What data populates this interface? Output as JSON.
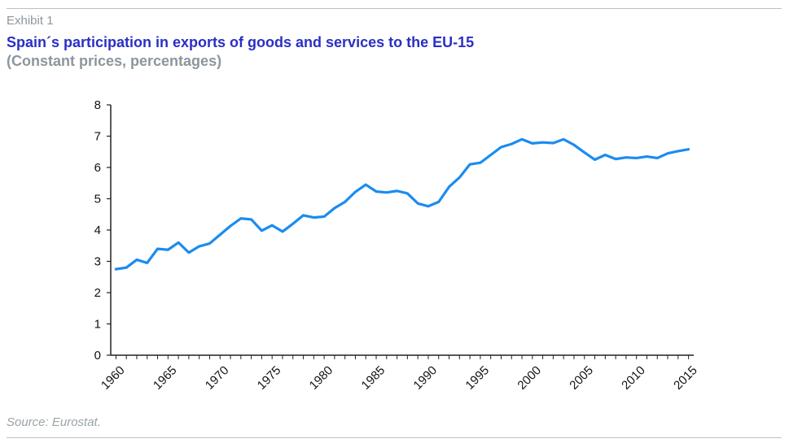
{
  "header": {
    "exhibit": "Exhibit 1",
    "title": "Spain´s participation in exports of goods and services to the EU-15",
    "subtitle": "(Constant prices, percentages)"
  },
  "footer": {
    "source": "Source: Eurostat."
  },
  "colors": {
    "line": "#1a8cf0",
    "axis": "#222222",
    "title": "#2b2fc4",
    "subtitle": "#8c969c"
  },
  "chart_data": {
    "type": "line",
    "title": "Spain´s participation in exports of goods and services to the EU-15",
    "subtitle": "(Constant prices, percentages)",
    "xlabel": "",
    "ylabel": "",
    "ylim": [
      0,
      8
    ],
    "xlim": [
      1960,
      2015
    ],
    "grid": false,
    "y_ticks": [
      "0",
      "1",
      "2",
      "3",
      "4",
      "5",
      "6",
      "7",
      "8"
    ],
    "x_ticks": [
      "1960",
      "1965",
      "1970",
      "1975",
      "1980",
      "1985",
      "1990",
      "1995",
      "2000",
      "2005",
      "2010",
      "2015"
    ],
    "x": [
      1960,
      1961,
      1962,
      1963,
      1964,
      1965,
      1966,
      1967,
      1968,
      1969,
      1970,
      1971,
      1972,
      1973,
      1974,
      1975,
      1976,
      1977,
      1978,
      1979,
      1980,
      1981,
      1982,
      1983,
      1984,
      1985,
      1986,
      1987,
      1988,
      1989,
      1990,
      1991,
      1992,
      1993,
      1994,
      1995,
      1996,
      1997,
      1998,
      1999,
      2000,
      2001,
      2002,
      2003,
      2004,
      2005,
      2006,
      2007,
      2008,
      2009,
      2010,
      2011,
      2012,
      2013,
      2014,
      2015
    ],
    "series": [
      {
        "values": [
          2.75,
          2.8,
          3.05,
          2.95,
          3.4,
          3.37,
          3.6,
          3.28,
          3.48,
          3.57,
          3.85,
          4.13,
          4.37,
          4.34,
          3.98,
          4.15,
          3.95,
          4.2,
          4.47,
          4.4,
          4.43,
          4.7,
          4.9,
          5.22,
          5.45,
          5.23,
          5.2,
          5.25,
          5.17,
          4.85,
          4.76,
          4.9,
          5.38,
          5.68,
          6.1,
          6.15,
          6.4,
          6.65,
          6.75,
          6.9,
          6.77,
          6.8,
          6.78,
          6.9,
          6.72,
          6.48,
          6.25,
          6.4,
          6.27,
          6.32,
          6.3,
          6.35,
          6.3,
          6.45,
          6.52,
          6.58
        ]
      }
    ]
  }
}
